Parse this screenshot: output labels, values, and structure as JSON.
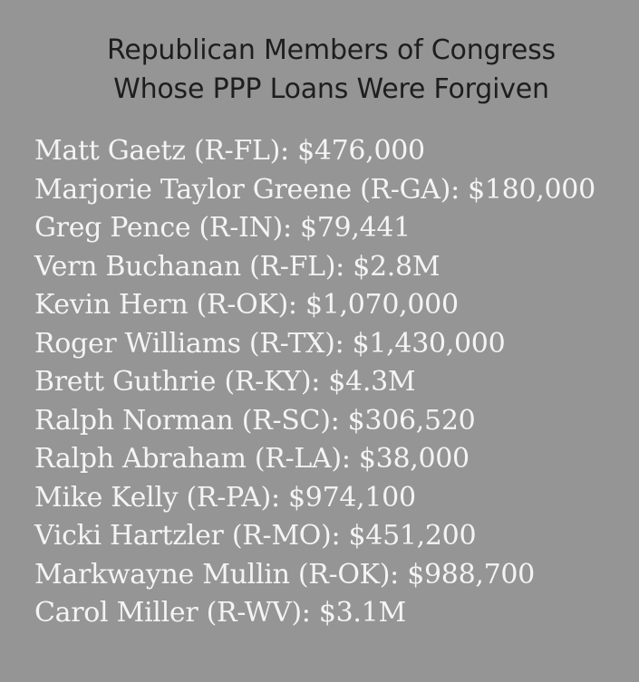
{
  "title": {
    "line1": "Republican Members of Congress",
    "line2": "Whose PPP Loans Were Forgiven"
  },
  "entries": [
    "Matt Gaetz (R-FL): $476,000",
    "Marjorie Taylor Greene (R-GA): $180,000",
    "Greg Pence (R-IN): $79,441",
    "Vern Buchanan (R-FL): $2.8M",
    "Kevin Hern (R-OK): $1,070,000",
    "Roger Williams (R-TX): $1,430,000",
    "Brett Guthrie (R-KY): $4.3M",
    "Ralph Norman (R-SC): $306,520",
    "Ralph Abraham (R-LA): $38,000",
    "Mike Kelly (R-PA): $974,100",
    "Vicki Hartzler (R-MO): $451,200",
    "Markwayne Mullin (R-OK): $988,700",
    "Carol Miller (R-WV): $3.1M"
  ]
}
